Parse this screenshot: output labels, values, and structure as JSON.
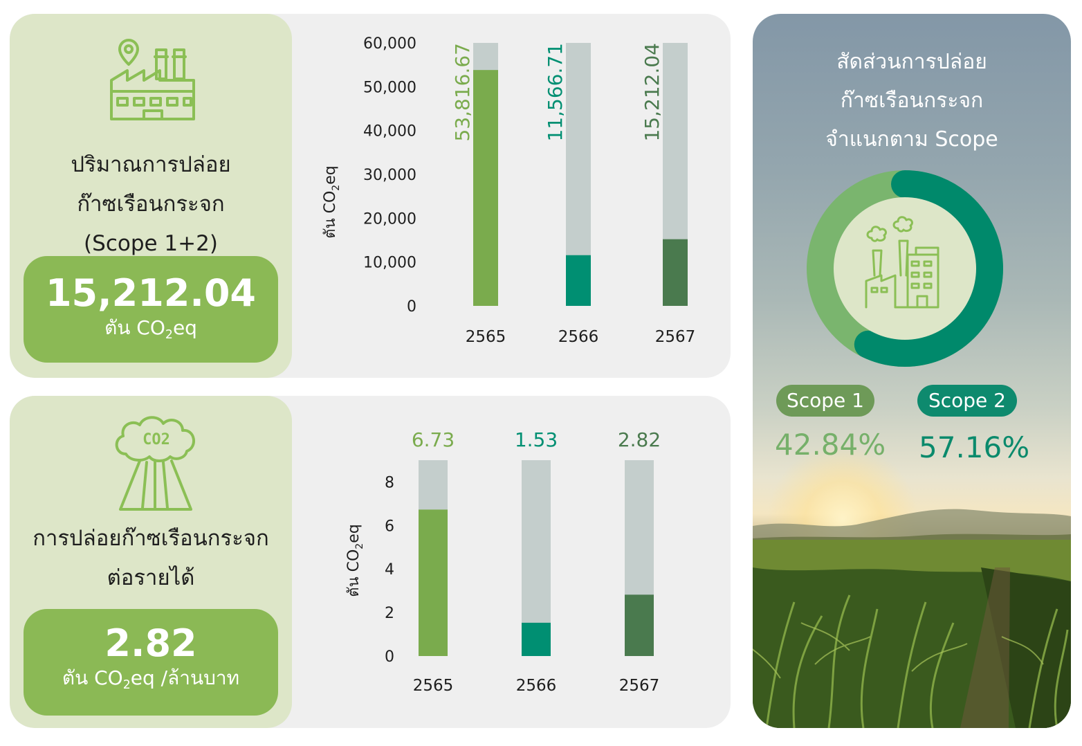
{
  "colors": {
    "green_light": "#7aab4d",
    "teal": "#008f72",
    "green_dark": "#4a7a4e",
    "bar_bg": "#c4cecc",
    "pill": "#8bb955",
    "panel": "#dde6c8"
  },
  "top_panel": {
    "icon": "factory-location-icon",
    "title_lines": [
      "ปริมาณการปล่อย",
      "ก๊าซเรือนกระจก",
      "(Scope 1+2)"
    ],
    "value": "15,212.04",
    "unit_prefix": "ตัน CO",
    "unit_sub": "2",
    "unit_suffix": "eq"
  },
  "bottom_panel": {
    "icon": "co2-cloud-icon",
    "title_lines": [
      "การปล่อยก๊าซเรือนกระจก",
      "ต่อรายได้"
    ],
    "value": "2.82",
    "unit_prefix": "ตัน CO",
    "unit_sub": "2",
    "unit_suffix": "eq /ล้านบาท"
  },
  "chart_data": [
    {
      "type": "bar",
      "categories": [
        "2565",
        "2566",
        "2567"
      ],
      "values": [
        53816.67,
        11566.71,
        15212.04
      ],
      "value_labels": [
        "53,816.67",
        "11,566.71",
        "15,212.04"
      ],
      "yticks": [
        "0",
        "10,000",
        "20,000",
        "30,000",
        "40,000",
        "50,000",
        "60,000"
      ],
      "ylim": [
        0,
        60000
      ],
      "ylabel_prefix": "ตัน CO",
      "ylabel_sub": "2",
      "ylabel_suffix": "eq",
      "bar_colors": [
        "#7aab4d",
        "#008f72",
        "#4a7a4e"
      ],
      "label_colors": [
        "#7aab4d",
        "#008f72",
        "#4a7a4e"
      ],
      "grid": false,
      "value_label_orientation": "vertical"
    },
    {
      "type": "bar",
      "categories": [
        "2565",
        "2566",
        "2567"
      ],
      "values": [
        6.73,
        1.53,
        2.82
      ],
      "value_labels": [
        "6.73",
        "1.53",
        "2.82"
      ],
      "yticks": [
        "0",
        "2",
        "4",
        "6",
        "8"
      ],
      "ylim": [
        0,
        9
      ],
      "ylabel_prefix": "ตัน CO",
      "ylabel_sub": "2",
      "ylabel_suffix": "eq",
      "bar_colors": [
        "#7aab4d",
        "#008f72",
        "#4a7a4e"
      ],
      "label_colors": [
        "#7aab4d",
        "#008f72",
        "#4a7a4e"
      ],
      "grid": false,
      "value_label_orientation": "horizontal"
    },
    {
      "type": "pie",
      "variant": "donut",
      "title_lines": [
        "สัดส่วนการปล่อย",
        "ก๊าซเรือนกระจก",
        "จำแนกตาม Scope"
      ],
      "categories": [
        "Scope 1",
        "Scope 2"
      ],
      "values": [
        42.84,
        57.16
      ],
      "value_labels": [
        "42.84%",
        "57.16%"
      ],
      "colors": [
        "#7ab56e",
        "#00896b"
      ],
      "center_icon": "factory-smokestack-icon"
    }
  ]
}
